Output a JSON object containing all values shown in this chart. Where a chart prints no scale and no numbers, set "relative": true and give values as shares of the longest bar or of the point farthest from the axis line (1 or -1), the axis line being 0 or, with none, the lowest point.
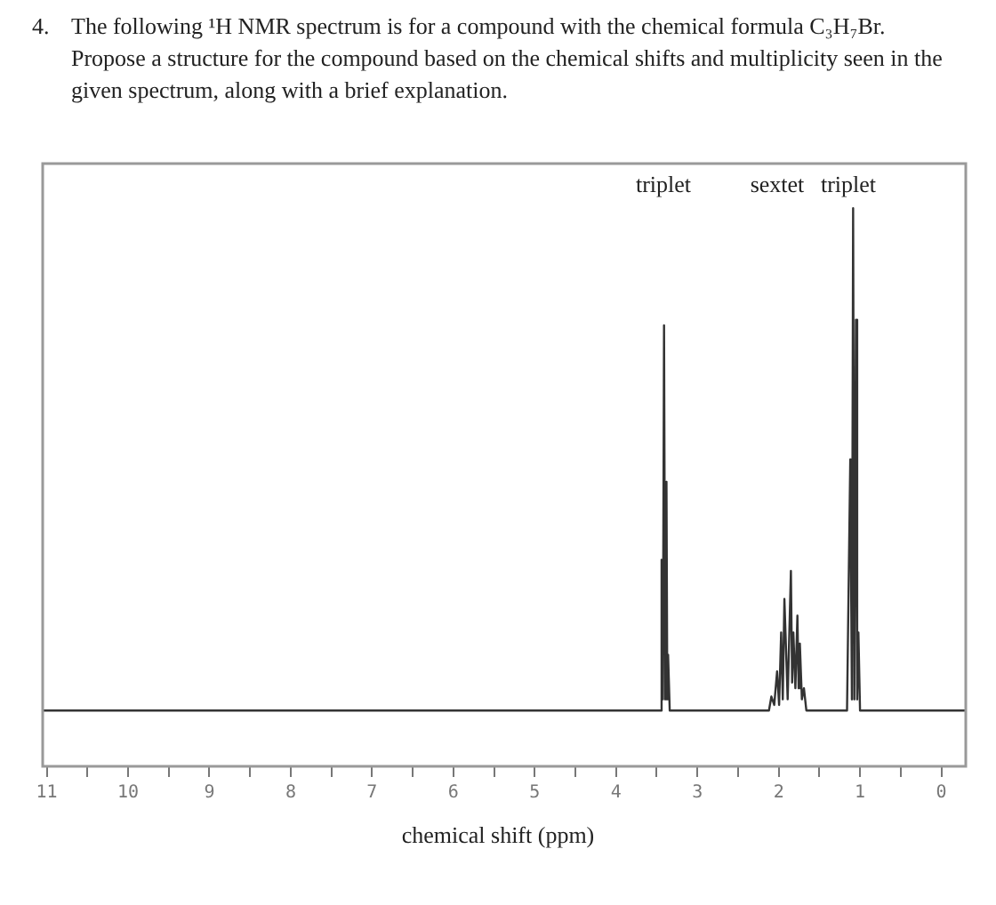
{
  "chart_data": {
    "type": "line",
    "title": "4.\tThe following ¹H NMR spectrum is for a compound with the chemical formula C₃H₇Br. Propose a structure for the compound based on the chemical shifts and multiplicity seen in the given spectrum, along with a brief explanation.",
    "xlabel": "chemical shift (ppm)",
    "relative": true,
    "xlim": [
      11.05,
      -0.3
    ],
    "xticks": [
      11,
      {
        "value": 10.5,
        "label": null
      },
      10,
      {
        "value": 9.5,
        "label": null
      },
      9,
      {
        "value": 8.5,
        "label": null
      },
      8,
      {
        "value": 7.5,
        "label": null
      },
      7,
      {
        "value": 6.5,
        "label": null
      },
      6,
      {
        "value": 5.5,
        "label": null
      },
      5,
      {
        "value": 4.5,
        "label": null
      },
      4,
      {
        "value": 3.5,
        "label": null
      },
      3,
      {
        "value": 2.5,
        "label": null
      },
      2,
      {
        "value": 1.5,
        "label": null
      },
      1,
      {
        "value": 0.5,
        "label": null
      },
      0
    ],
    "annotations": [
      "triplet",
      "sextet",
      "triplet"
    ],
    "grid": false,
    "legend": false,
    "marker": "none",
    "series": [
      {
        "color": "#333333",
        "x": [
          11.05,
          3.46,
          3.44,
          3.425,
          3.41,
          3.395,
          3.38,
          3.37,
          3.36,
          3.34,
          2.12,
          2.09,
          2.055,
          2.02,
          1.995,
          1.97,
          1.95,
          1.93,
          1.89,
          1.85,
          1.835,
          1.82,
          1.795,
          1.77,
          1.755,
          1.74,
          1.715,
          1.69,
          1.66,
          1.16,
          1.12,
          1.1,
          1.085,
          1.07,
          1.05,
          1.035,
          1.02,
          1.0,
          -0.3
        ],
        "values": [
          0.1,
          0.1,
          0.37,
          0.12,
          0.79,
          0.12,
          0.51,
          0.12,
          0.2,
          0.1,
          0.1,
          0.125,
          0.11,
          0.17,
          0.11,
          0.24,
          0.12,
          0.3,
          0.12,
          0.35,
          0.15,
          0.24,
          0.14,
          0.27,
          0.14,
          0.22,
          0.12,
          0.14,
          0.1,
          0.1,
          0.55,
          0.12,
          1.0,
          0.12,
          0.8,
          0.12,
          0.24,
          0.1,
          0.1
        ]
      }
    ]
  }
}
